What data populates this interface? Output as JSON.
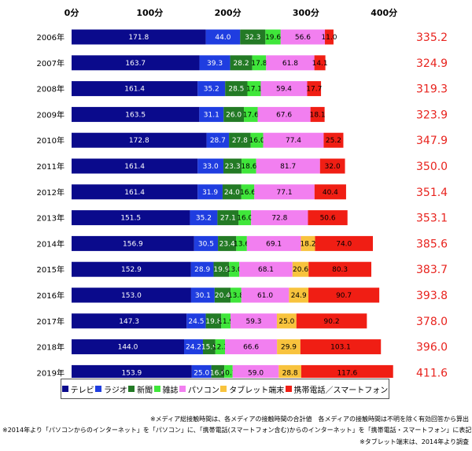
{
  "chart_data": {
    "type": "bar",
    "orientation": "horizontal",
    "stacked": true,
    "categories": [
      "2006年",
      "2007年",
      "2008年",
      "2009年",
      "2010年",
      "2011年",
      "2012年",
      "2013年",
      "2014年",
      "2015年",
      "2016年",
      "2017年",
      "2018年",
      "2019年"
    ],
    "series": [
      {
        "name": "テレビ",
        "color": "#0a0a8c",
        "values": [
          171.8,
          163.7,
          161.4,
          163.5,
          172.8,
          161.4,
          161.4,
          151.5,
          156.9,
          152.9,
          153.0,
          147.3,
          144.0,
          153.9
        ]
      },
      {
        "name": "ラジオ",
        "color": "#1f3de0",
        "values": [
          44.0,
          39.3,
          35.2,
          31.1,
          28.7,
          33.0,
          31.9,
          35.2,
          30.5,
          28.9,
          30.1,
          24.5,
          24.2,
          25.0
        ]
      },
      {
        "name": "新聞",
        "color": "#237a25",
        "values": [
          32.3,
          28.2,
          28.5,
          26.0,
          27.8,
          23.3,
          24.0,
          27.1,
          23.4,
          19.9,
          20.4,
          19.8,
          15.9,
          16.6
        ]
      },
      {
        "name": "雑誌",
        "color": "#3fe63a",
        "values": [
          19.6,
          17.8,
          17.1,
          17.6,
          16.0,
          18.6,
          16.6,
          16.0,
          13.6,
          13.0,
          13.8,
          11.9,
          12.3,
          10.7
        ]
      },
      {
        "name": "パソコン",
        "color": "#f27ff0",
        "values": [
          56.6,
          61.8,
          59.4,
          67.6,
          77.4,
          81.7,
          77.1,
          72.8,
          69.1,
          68.1,
          61.0,
          59.3,
          66.6,
          59.0
        ]
      },
      {
        "name": "タブレット端末",
        "color": "#f8c33d",
        "values": [
          null,
          null,
          null,
          null,
          null,
          null,
          null,
          null,
          18.2,
          20.6,
          24.9,
          25.0,
          29.9,
          28.8
        ]
      },
      {
        "name": "携帯電話／スマートフォン",
        "color": "#f01e14",
        "values": [
          11.0,
          14.1,
          17.7,
          18.1,
          25.2,
          32.0,
          40.4,
          50.6,
          74.0,
          80.3,
          90.7,
          90.2,
          103.1,
          117.6
        ]
      }
    ],
    "totals": [
      "335.2",
      "324.9",
      "319.3",
      "323.9",
      "347.9",
      "350.0",
      "351.4",
      "353.1",
      "385.6",
      "383.7",
      "393.8",
      "378.0",
      "396.0",
      "411.6"
    ],
    "x_ticks": [
      "0分",
      "100分",
      "200分",
      "300分",
      "400分"
    ],
    "xlim": [
      0,
      400
    ],
    "grid": false,
    "legend_position": "bottom"
  },
  "notes": [
    "※メディア総接触時間は、各メディアの接触時間の合計値　各メディアの接触時間は不明を除く有効回答から算出",
    "※2014年より「パソコンからのインターネット」を「パソコン」に、「携帯電話(スマートフォン含む)からのインターネット」を「携帯電話・スマートフォン」に表記を変更",
    "※タブレット端末は、2014年より調査"
  ]
}
